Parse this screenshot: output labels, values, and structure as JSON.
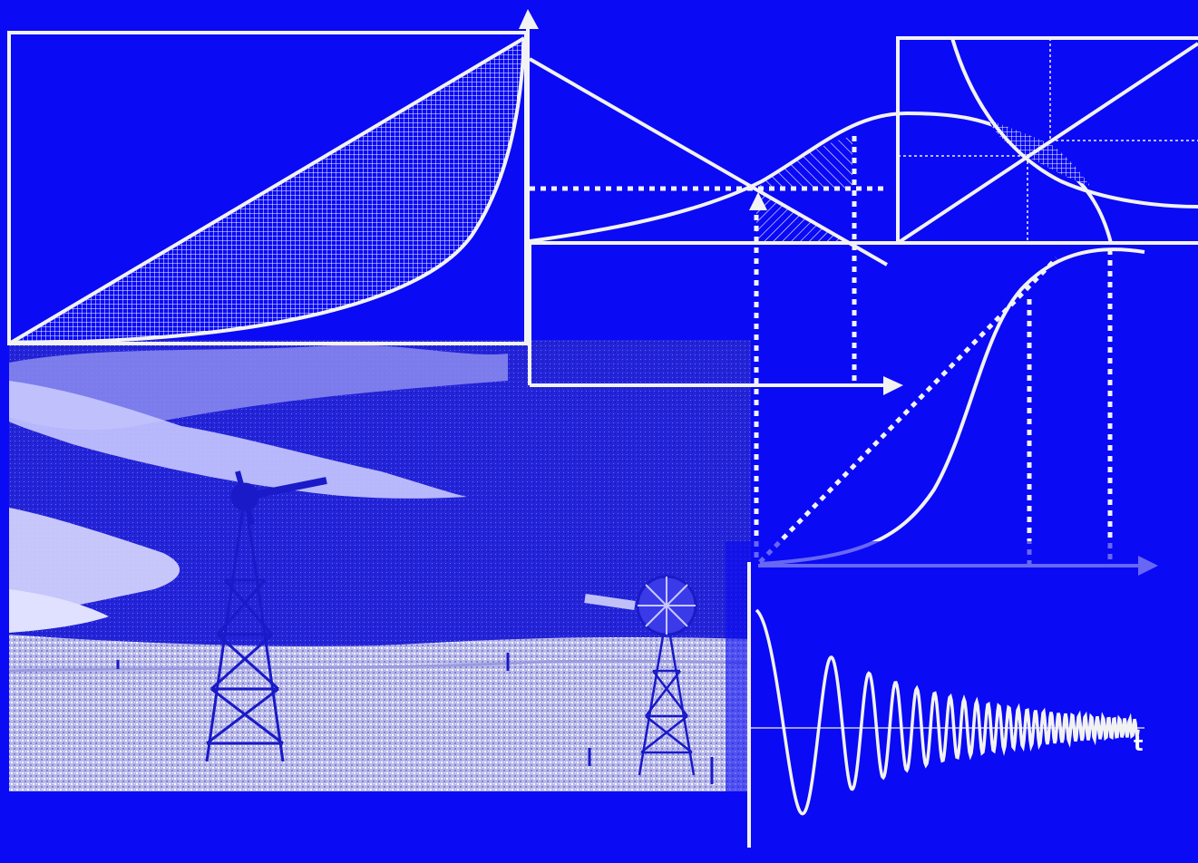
{
  "background_color": "#0a0af5",
  "line_color": "#f2f2f2",
  "photo": {
    "subject": "windmills-on-prairie",
    "tint": "#2020ff"
  },
  "oscillation_axis_label": "t",
  "icons": [
    "arrow-up-icon",
    "arrow-right-icon"
  ]
}
